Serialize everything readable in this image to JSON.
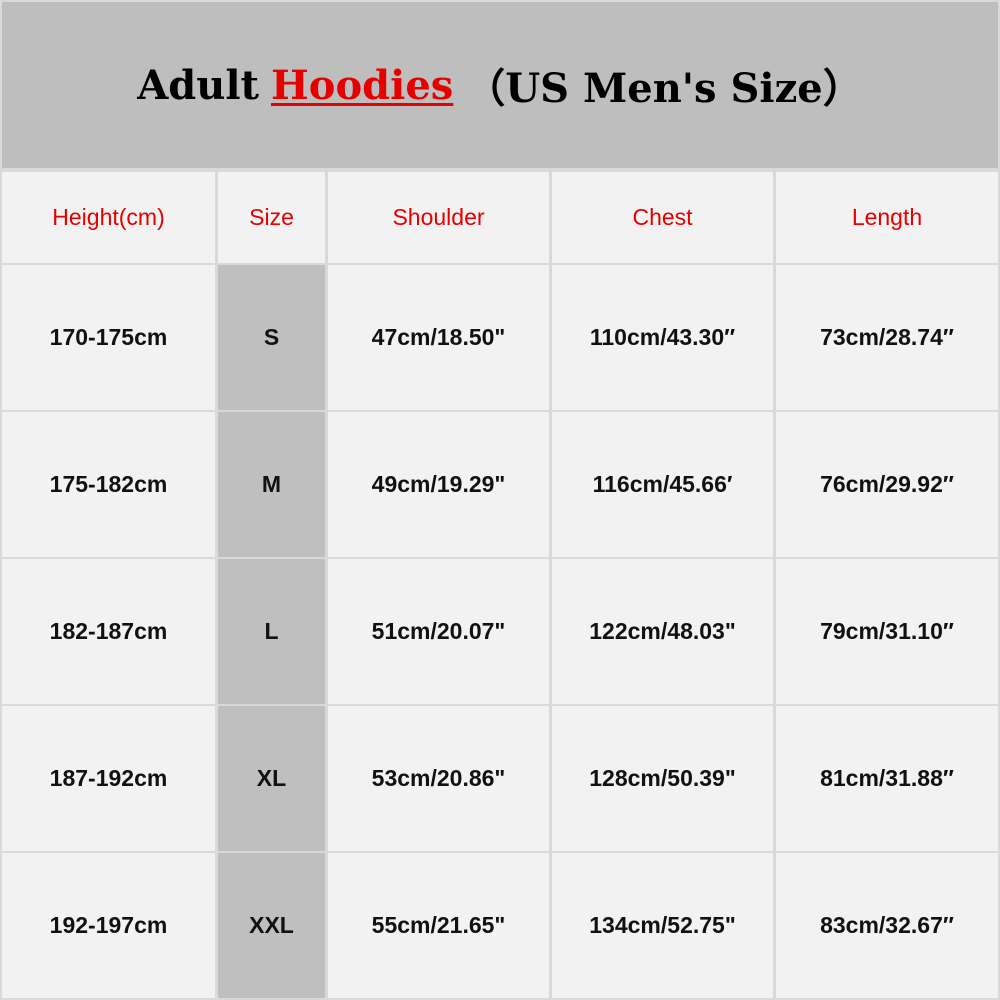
{
  "title": {
    "prefix": "Adult",
    "highlight": "Hoodies",
    "suffix": "（US  Men's  Size）",
    "accent_color": "#e60000"
  },
  "table": {
    "headers": [
      "Height(cm)",
      "Size",
      "Shoulder",
      "Chest",
      "Length"
    ],
    "rows": [
      [
        "170-175cm",
        "S",
        "47cm/18.50\"",
        "110cm/43.30″",
        "73cm/28.74″"
      ],
      [
        "175-182cm",
        "M",
        "49cm/19.29\"",
        "116cm/45.66′",
        "76cm/29.92″"
      ],
      [
        "182-187cm",
        "L",
        "51cm/20.07\"",
        "122cm/48.03\"",
        "79cm/31.10″"
      ],
      [
        "187-192cm",
        "XL",
        "53cm/20.86\"",
        "128cm/50.39\"",
        "81cm/31.88″"
      ],
      [
        "192-197cm",
        "XXL",
        "55cm/21.65\"",
        "134cm/52.75\"",
        "83cm/32.67″"
      ]
    ]
  }
}
